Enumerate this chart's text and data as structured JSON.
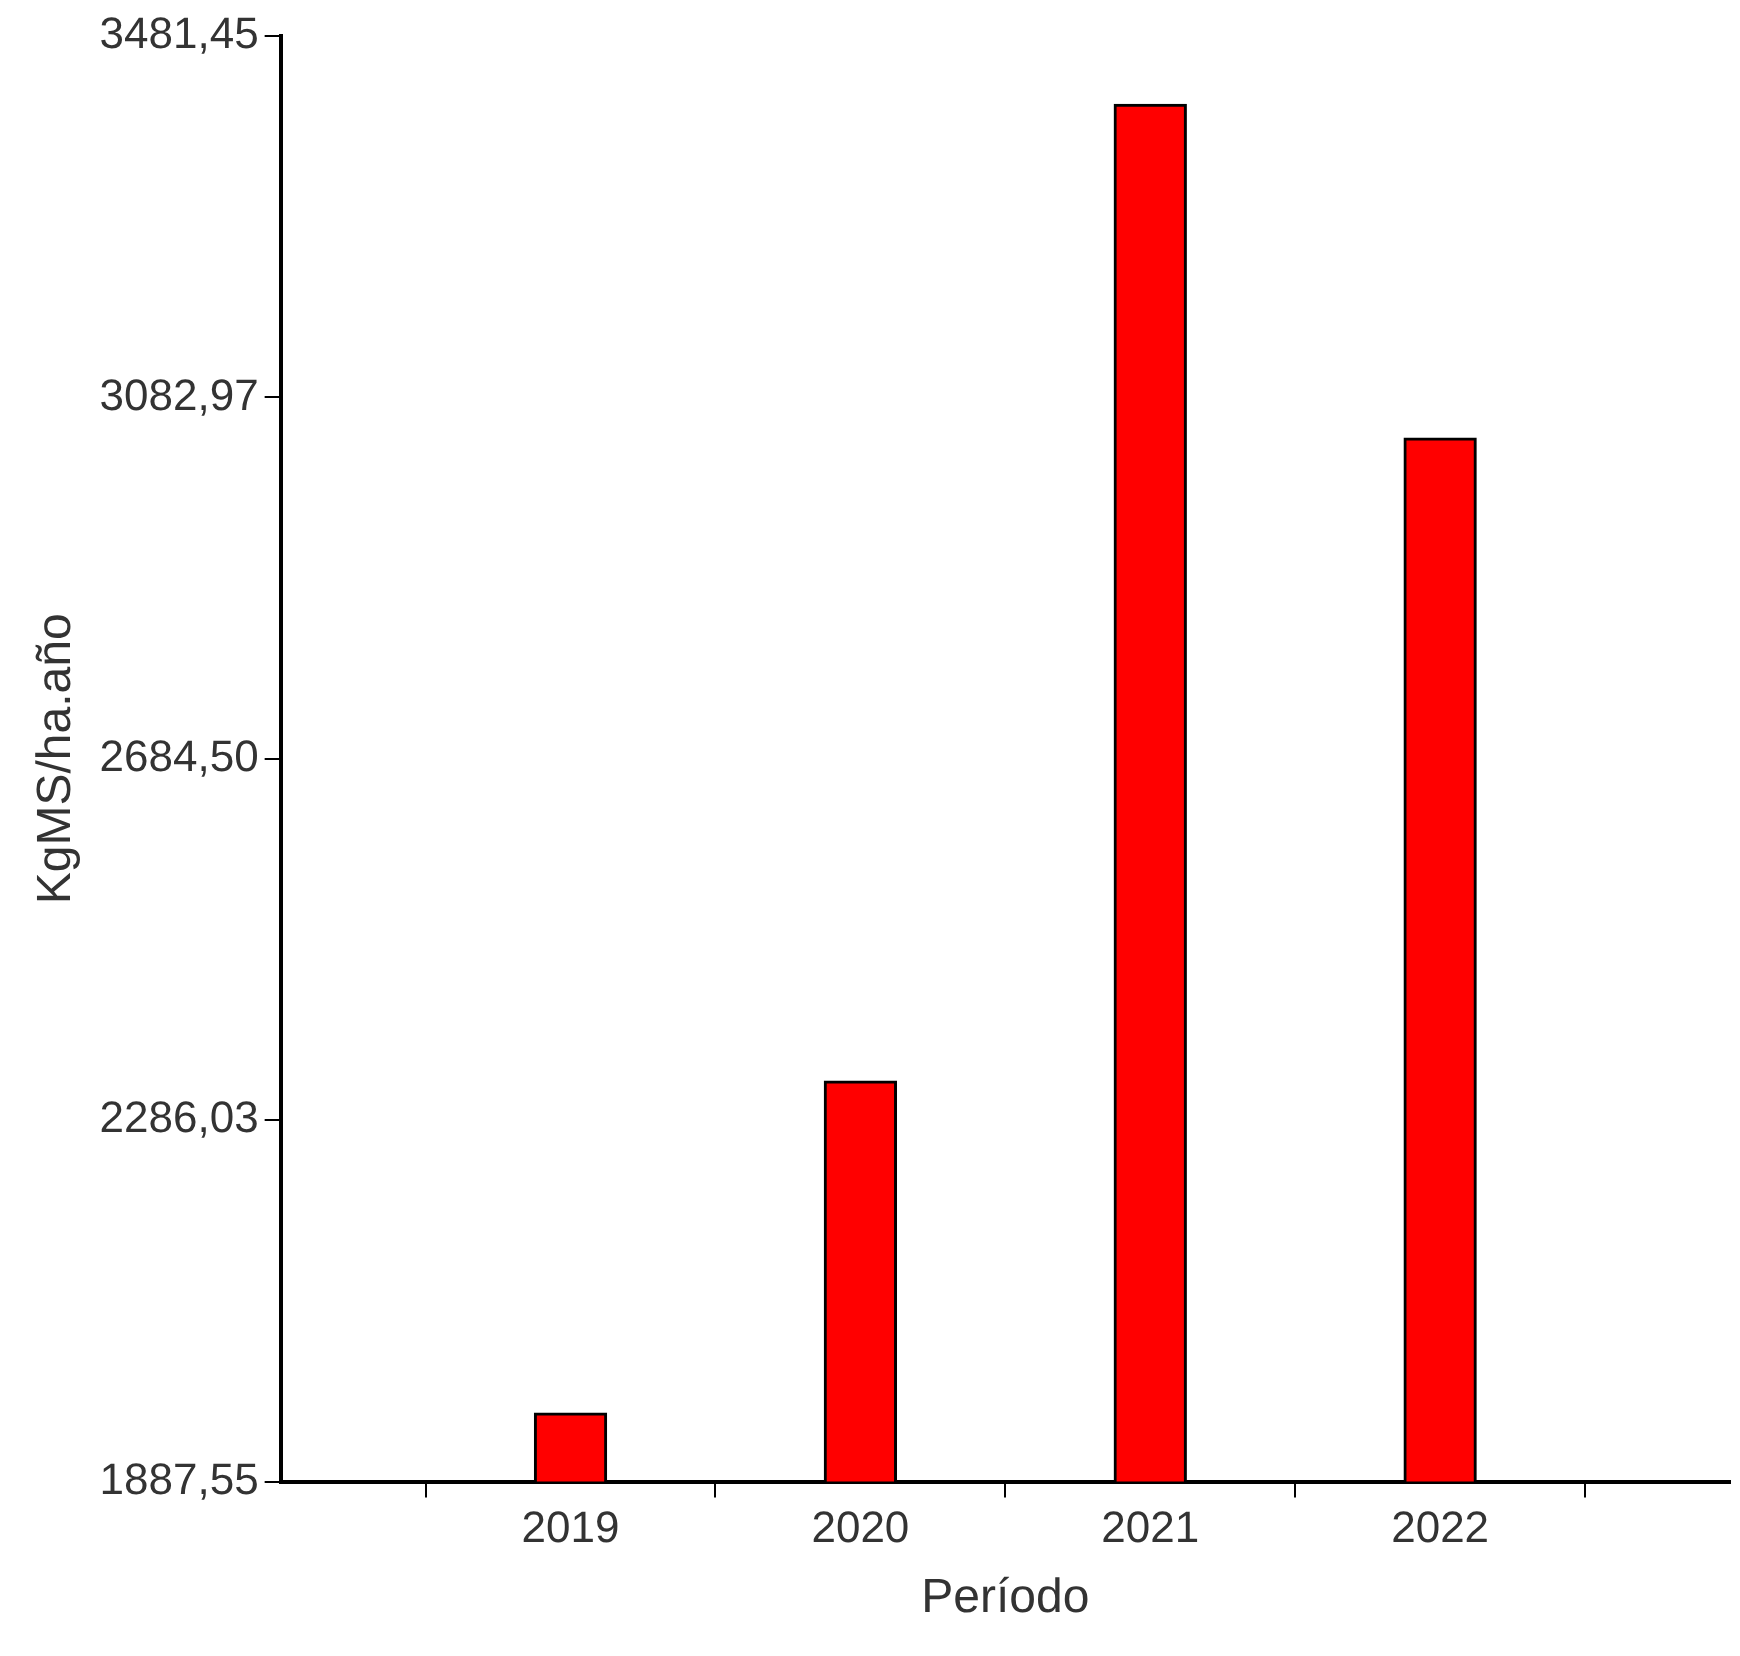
{
  "chart_data": {
    "type": "bar",
    "xlabel": "Período",
    "ylabel": "KgMS/ha.año",
    "categories": [
      "2019",
      "2020",
      "2021",
      "2022"
    ],
    "values": [
      1963,
      2329,
      3406,
      3038
    ],
    "color": "#ff0000",
    "ylim": [
      1887.55,
      3481.45
    ],
    "yticks": [
      {
        "value": 1887.55,
        "label": "1887,55"
      },
      {
        "value": 2286.03,
        "label": "2286,03"
      },
      {
        "value": 2684.5,
        "label": "2684,50"
      },
      {
        "value": 3082.97,
        "label": "3082,97"
      },
      {
        "value": 3481.45,
        "label": "3481,45"
      }
    ],
    "grid": false,
    "legend": false
  }
}
